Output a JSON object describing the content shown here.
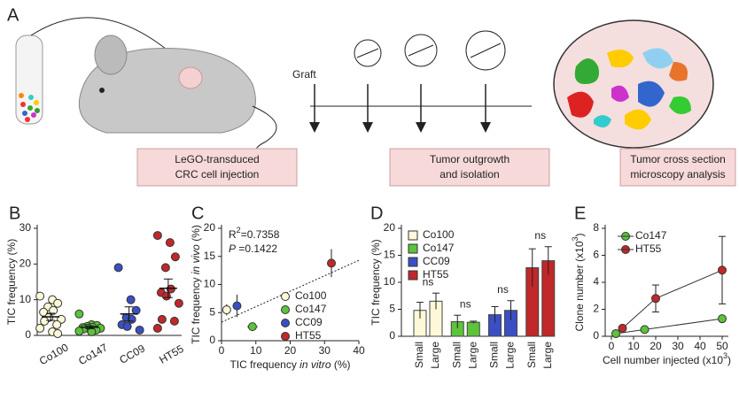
{
  "panel_a": {
    "panel": "A",
    "timeline_label": "Graft",
    "boxes": [
      [
        "LeGO-transduced",
        "CRC cell injection"
      ],
      [
        "Tumor outgrowth",
        "and isolation"
      ],
      [
        "Tumor cross section",
        "microscopy analysis"
      ]
    ]
  },
  "chart_data": [
    {
      "panel": "B",
      "type": "strip",
      "ylabel": "TIC frequency (%)",
      "categories": [
        "Co100",
        "Co147",
        "CC09",
        "HT55"
      ],
      "colors": [
        "#fdf8d8",
        "#5cc33a",
        "#3b4fc4",
        "#c0282a"
      ],
      "points": [
        [
          11,
          10,
          9,
          8,
          7,
          6.5,
          5,
          4.5,
          4,
          3,
          2,
          1,
          0.5
        ],
        [
          6,
          3,
          2.8,
          2.5,
          2.3,
          2.2,
          2,
          2,
          1.8,
          1.5,
          1.2,
          1
        ],
        [
          19,
          10,
          7,
          5,
          4.5,
          3,
          2.5,
          1.5
        ],
        [
          28,
          26,
          22,
          19,
          13,
          12,
          11,
          9,
          4.5,
          4,
          2
        ]
      ],
      "means": [
        5.2,
        2.3,
        6,
        13.2
      ],
      "sems": [
        1,
        0.4,
        2,
        2.6
      ],
      "ylim": [
        0,
        30
      ],
      "yticks": [
        0,
        10,
        20,
        30
      ]
    },
    {
      "panel": "C",
      "type": "scatter",
      "xlabel": [
        "TIC frequency ",
        "in vitro",
        " (%)"
      ],
      "ylabel": [
        "TIC frequency ",
        "in vivo",
        " (%)"
      ],
      "annotations": [
        [
          "R",
          "2",
          "=0.7358"
        ],
        [
          "P",
          " =0.1422"
        ]
      ],
      "series": [
        {
          "name": "Co100",
          "color": "#fdf8d8",
          "x": [
            1.5
          ],
          "values": [
            5.5
          ],
          "xerr": [
            0.4
          ],
          "yerr": [
            1
          ]
        },
        {
          "name": "Co147",
          "color": "#5cc33a",
          "x": [
            9
          ],
          "values": [
            2.5
          ],
          "xerr": [
            1.5
          ],
          "yerr": [
            0.5
          ]
        },
        {
          "name": "CC09",
          "color": "#3b4fc4",
          "x": [
            4.5
          ],
          "values": [
            6.2
          ],
          "xerr": [
            1
          ],
          "yerr": [
            2
          ]
        },
        {
          "name": "HT55",
          "color": "#c0282a",
          "x": [
            32
          ],
          "values": [
            13.8
          ],
          "xerr": [
            0.5
          ],
          "yerr": [
            2.5
          ]
        }
      ],
      "fit": {
        "x": [
          0,
          40
        ],
        "y": [
          3.3,
          14.3
        ]
      },
      "xlim": [
        0,
        40
      ],
      "xticks": [
        0,
        10,
        20,
        30,
        40
      ],
      "ylim": [
        0,
        20
      ],
      "yticks": [
        0,
        5,
        10,
        15,
        20
      ],
      "legend": "lower right"
    },
    {
      "panel": "D",
      "type": "bar",
      "ylabel": "TIC frequency (%)",
      "categories": [
        "Small",
        "Large"
      ],
      "series": [
        {
          "name": "Co100",
          "color": "#fdf8d8",
          "values": [
            4.8,
            6.5
          ],
          "errors": [
            1.5,
            1.5
          ]
        },
        {
          "name": "Co147",
          "color": "#5cc33a",
          "values": [
            2.7,
            2.6
          ],
          "errors": [
            1.2,
            0.2
          ]
        },
        {
          "name": "CC09",
          "color": "#3b4fc4",
          "values": [
            4,
            4.8
          ],
          "errors": [
            1.5,
            1.8
          ]
        },
        {
          "name": "HT55",
          "color": "#c0282a",
          "values": [
            12.7,
            14
          ],
          "errors": [
            3.5,
            2.6
          ]
        }
      ],
      "annotations": [
        "ns",
        "ns",
        "ns",
        "ns"
      ],
      "ylim": [
        0,
        20
      ],
      "yticks": [
        0,
        5,
        10,
        15,
        20
      ],
      "legend": "upper left"
    },
    {
      "panel": "E",
      "type": "line",
      "xlabel": [
        "Cell number injected (x10",
        "3",
        ")"
      ],
      "ylabel": [
        "Clone number (x10",
        "3",
        ")"
      ],
      "series": [
        {
          "name": "Co147",
          "color": "#5cc33a",
          "x": [
            2,
            15,
            50
          ],
          "values": [
            0.2,
            0.5,
            1.3
          ],
          "errors": [
            0.1,
            0.15,
            0.15
          ]
        },
        {
          "name": "HT55",
          "color": "#c0282a",
          "x": [
            5,
            20,
            50
          ],
          "values": [
            0.6,
            2.8,
            4.9
          ],
          "errors": [
            0.1,
            1,
            2.5
          ]
        }
      ],
      "xlim": [
        0,
        50
      ],
      "xticks": [
        0,
        10,
        20,
        30,
        40,
        50
      ],
      "ylim": [
        0,
        8
      ],
      "yticks": [
        0,
        2,
        4,
        6,
        8
      ],
      "legend": "upper left"
    }
  ]
}
